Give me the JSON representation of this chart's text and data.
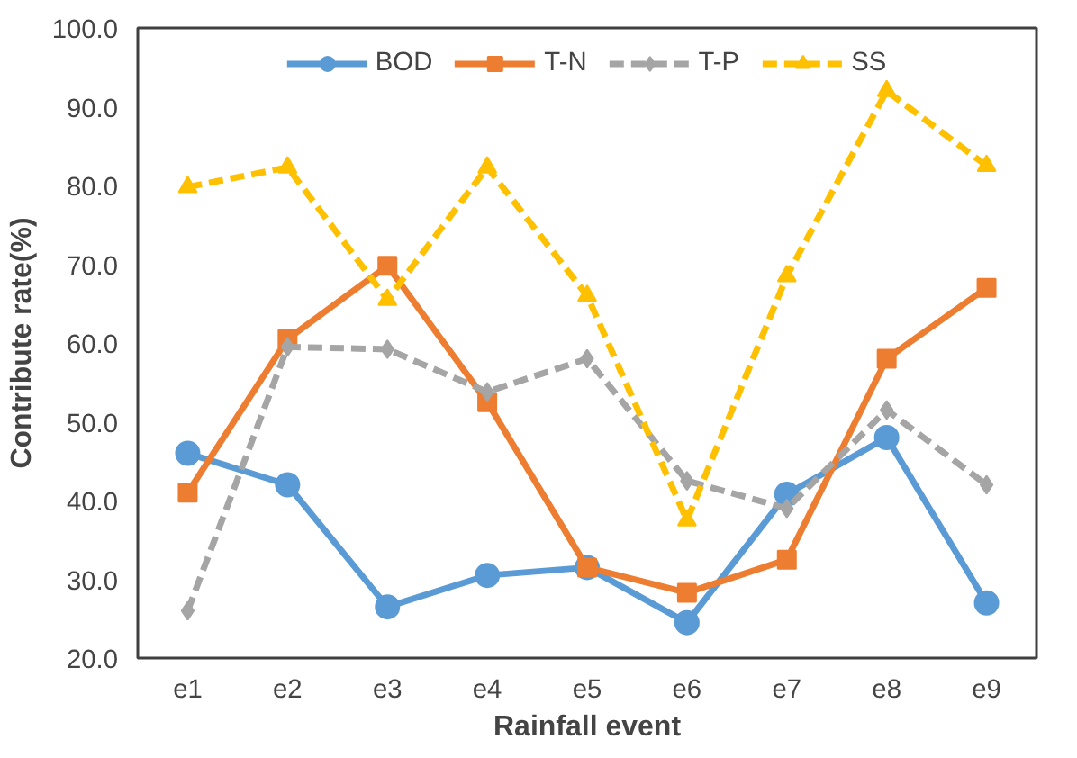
{
  "chart_data": {
    "type": "line",
    "xlabel": "Rainfall event",
    "ylabel": "Contribute rate(%)",
    "categories": [
      "e1",
      "e2",
      "e3",
      "e4",
      "e5",
      "e6",
      "e7",
      "e8",
      "e9"
    ],
    "ylim": [
      20,
      100
    ],
    "yticks": [
      {
        "value": 20,
        "label": "20.0"
      },
      {
        "value": 30,
        "label": "30.0"
      },
      {
        "value": 40,
        "label": "40.0"
      },
      {
        "value": 50,
        "label": "50.0"
      },
      {
        "value": 60,
        "label": "60.0"
      },
      {
        "value": 70,
        "label": "70.0"
      },
      {
        "value": 80,
        "label": "80.0"
      },
      {
        "value": 90,
        "label": "90.0"
      },
      {
        "value": 100,
        "label": "100.0"
      }
    ],
    "legend": "top",
    "grid": false,
    "series": [
      {
        "name": "BOD",
        "color": "#5b9bd5",
        "marker": "circle",
        "line_style": "solid",
        "values": [
          46,
          42,
          26.5,
          30.5,
          31.5,
          24.5,
          40.8,
          48,
          27
        ]
      },
      {
        "name": "T-N",
        "color": "#ed7d31",
        "marker": "square",
        "line_style": "solid",
        "values": [
          41,
          60.5,
          69.8,
          52.5,
          31.5,
          28.3,
          32.5,
          58,
          67
        ]
      },
      {
        "name": "T-P",
        "color": "#a5a5a5",
        "marker": "diamond",
        "line_style": "dashed",
        "values": [
          26,
          59.5,
          59.2,
          53.8,
          58,
          42.5,
          39,
          51.5,
          42
        ]
      },
      {
        "name": "SS",
        "color": "#ffc000",
        "marker": "triangle",
        "line_style": "dashed",
        "values": [
          79.8,
          82.3,
          65.5,
          82.3,
          66,
          37.5,
          68.5,
          92,
          82.5
        ]
      }
    ]
  }
}
